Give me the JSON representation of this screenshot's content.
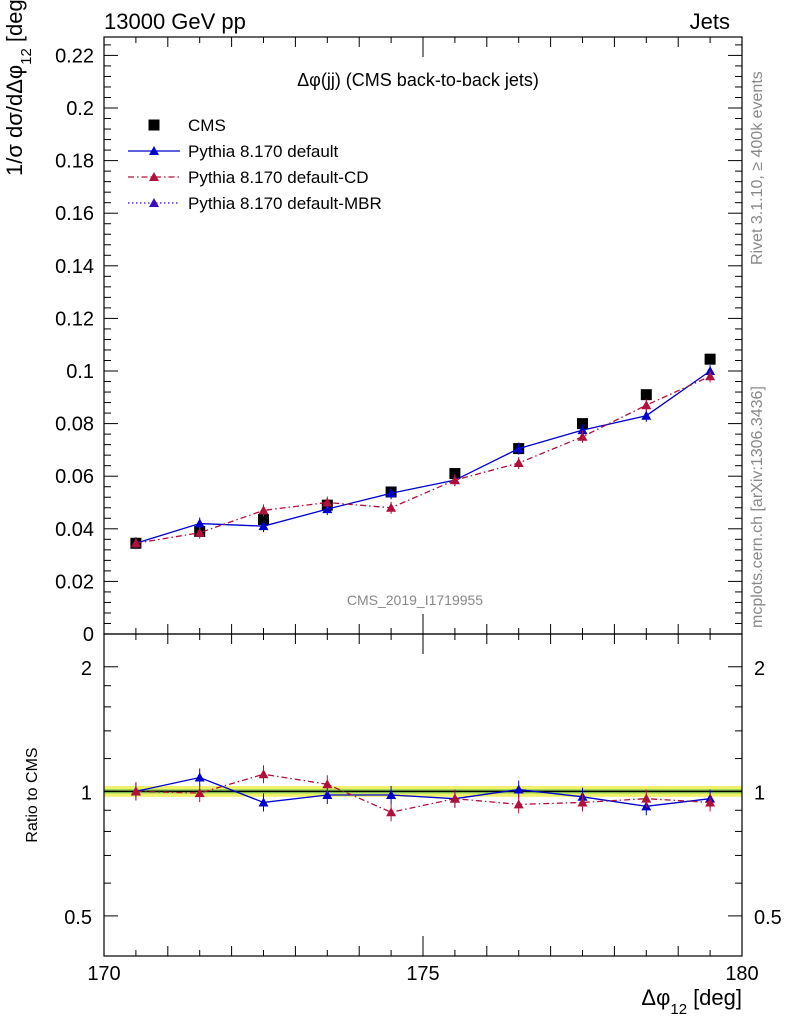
{
  "header": {
    "left": "13000 GeV pp",
    "right": "Jets"
  },
  "side_labels": {
    "rivet": "Rivet 3.1.10, ≥ 400k events",
    "mcplots": "mcplots.cern.ch [arXiv:1306.3436]"
  },
  "watermark": "CMS_2019_I1719955",
  "colors": {
    "cms": "#000000",
    "default": "#0000cc",
    "cd": "#b0103a",
    "mbr": "#3b0bbf",
    "band_yellow": "#f0f06a",
    "band_green": "#8fd25a"
  },
  "chart_data": [
    {
      "type": "scatter",
      "title": "Δφ(jj) (CMS back-to-back jets)",
      "ylabel": "1/σ dσ/dΔφ_12 [deg^-1]",
      "xlabel": "Δφ_12 [deg]",
      "xlim": [
        170,
        180
      ],
      "ylim": [
        0,
        0.227
      ],
      "yticks": [
        "0",
        "0.02",
        "0.04",
        "0.06",
        "0.08",
        "0.1",
        "0.12",
        "0.14",
        "0.16",
        "0.18",
        "0.2",
        "0.22"
      ],
      "legend_position": "top-left",
      "x": [
        170.5,
        171.5,
        172.5,
        173.5,
        174.5,
        175.5,
        176.5,
        177.5,
        178.5,
        179.5
      ],
      "series": [
        {
          "name": "CMS",
          "style": "square",
          "values": [
            0.0345,
            0.039,
            0.0435,
            0.049,
            0.054,
            0.061,
            0.0705,
            0.08,
            0.091,
            0.1045
          ]
        },
        {
          "name": "Pythia 8.170 default",
          "style": "solid",
          "values": [
            0.0345,
            0.042,
            0.041,
            0.0475,
            0.0535,
            0.0585,
            0.0705,
            0.0775,
            0.083,
            0.1
          ]
        },
        {
          "name": "Pythia 8.170 default-CD",
          "style": "dashdot",
          "values": [
            0.0345,
            0.0385,
            0.047,
            0.05,
            0.048,
            0.0585,
            0.065,
            0.075,
            0.087,
            0.098
          ]
        },
        {
          "name": "Pythia 8.170 default-MBR",
          "style": "dotted",
          "values": []
        }
      ]
    },
    {
      "type": "line",
      "ylabel": "Ratio to CMS",
      "xlabel": "Δφ_12 [deg]",
      "xlim": [
        170,
        180
      ],
      "ylim": [
        0.4,
        2.4
      ],
      "log_scale": true,
      "yticks": [
        "0.5",
        "1",
        "2"
      ],
      "xticks": [
        "170",
        "175",
        "180"
      ],
      "band": [
        0.97,
        1.03
      ],
      "x": [
        170.5,
        171.5,
        172.5,
        173.5,
        174.5,
        175.5,
        176.5,
        177.5,
        178.5,
        179.5
      ],
      "series": [
        {
          "name": "Pythia 8.170 default",
          "style": "solid",
          "values": [
            1.0,
            1.08,
            0.94,
            0.98,
            0.98,
            0.96,
            1.01,
            0.97,
            0.92,
            0.96
          ]
        },
        {
          "name": "Pythia 8.170 default-CD",
          "style": "dashdot",
          "values": [
            1.0,
            0.99,
            1.1,
            1.04,
            0.89,
            0.96,
            0.93,
            0.94,
            0.96,
            0.94
          ]
        }
      ]
    }
  ]
}
